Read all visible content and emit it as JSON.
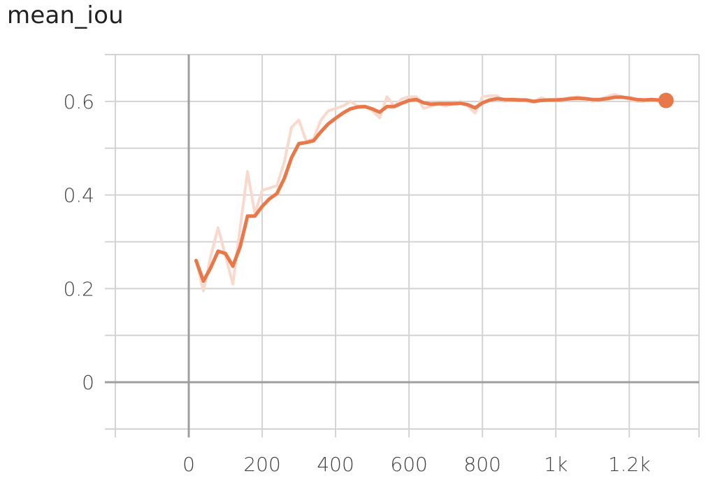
{
  "chart_data": {
    "type": "line",
    "title": "mean_iou",
    "xlabel": "",
    "ylabel": "",
    "xlim": [
      -200,
      1390
    ],
    "ylim": [
      -0.1,
      0.7
    ],
    "x_ticks": [
      0,
      200,
      400,
      600,
      800,
      1000,
      1200
    ],
    "x_tick_labels": [
      "0",
      "200",
      "400",
      "600",
      "800",
      "1k",
      "1.2k"
    ],
    "x_minor_ticks": [
      -200,
      0,
      200,
      400,
      600,
      800,
      1000,
      1200,
      1390
    ],
    "y_ticks": [
      0,
      0.2,
      0.4,
      0.6
    ],
    "y_tick_labels": [
      "0",
      "0.2",
      "0.4",
      "0.6"
    ],
    "y_minor_ticks": [
      -0.1,
      0.1,
      0.3,
      0.5,
      0.7
    ],
    "grid": true,
    "colors": {
      "series": "#e8784a",
      "series_raw": "#f9d9cc",
      "grid": "#d3d3d3",
      "zero_axis": "#9e9e9e",
      "text": "#424242"
    },
    "series": [
      {
        "name": "",
        "role": "raw",
        "x": [
          20,
          40,
          60,
          80,
          100,
          120,
          140,
          160,
          180,
          200,
          220,
          240,
          260,
          280,
          300,
          320,
          340,
          360,
          380,
          400,
          420,
          440,
          460,
          480,
          500,
          520,
          540,
          560,
          580,
          600,
          620,
          640,
          660,
          680,
          700,
          720,
          740,
          760,
          780,
          800,
          820,
          840,
          860,
          880,
          900,
          920,
          940,
          960,
          980,
          1000,
          1020,
          1040,
          1060,
          1080,
          1100,
          1120,
          1140,
          1160,
          1180,
          1200,
          1220,
          1240,
          1260,
          1280,
          1300
        ],
        "y": [
          0.26,
          0.195,
          0.27,
          0.33,
          0.27,
          0.21,
          0.33,
          0.45,
          0.36,
          0.41,
          0.415,
          0.42,
          0.47,
          0.545,
          0.56,
          0.515,
          0.52,
          0.56,
          0.58,
          0.585,
          0.59,
          0.6,
          0.59,
          0.59,
          0.58,
          0.565,
          0.61,
          0.59,
          0.605,
          0.61,
          0.61,
          0.585,
          0.59,
          0.595,
          0.59,
          0.595,
          0.6,
          0.59,
          0.575,
          0.61,
          0.612,
          0.612,
          0.6,
          0.605,
          0.605,
          0.6,
          0.598,
          0.608,
          0.602,
          0.605,
          0.605,
          0.608,
          0.61,
          0.605,
          0.6,
          0.605,
          0.61,
          0.615,
          0.61,
          0.605,
          0.6,
          0.6,
          0.605,
          0.6,
          0.6
        ]
      },
      {
        "name": "",
        "role": "smoothed",
        "x": [
          20,
          40,
          60,
          80,
          100,
          120,
          140,
          160,
          180,
          200,
          220,
          240,
          260,
          280,
          300,
          320,
          340,
          360,
          380,
          400,
          420,
          440,
          460,
          480,
          500,
          520,
          540,
          560,
          580,
          600,
          620,
          640,
          660,
          680,
          700,
          720,
          740,
          760,
          780,
          800,
          820,
          840,
          860,
          880,
          900,
          920,
          940,
          960,
          980,
          1000,
          1020,
          1040,
          1060,
          1080,
          1100,
          1120,
          1140,
          1160,
          1180,
          1200,
          1220,
          1240,
          1260,
          1280,
          1300
        ],
        "y": [
          0.26,
          0.216,
          0.245,
          0.28,
          0.275,
          0.248,
          0.29,
          0.355,
          0.355,
          0.376,
          0.392,
          0.403,
          0.435,
          0.48,
          0.51,
          0.512,
          0.516,
          0.535,
          0.552,
          0.564,
          0.575,
          0.584,
          0.588,
          0.589,
          0.584,
          0.577,
          0.589,
          0.589,
          0.596,
          0.602,
          0.604,
          0.597,
          0.594,
          0.595,
          0.595,
          0.595,
          0.596,
          0.593,
          0.586,
          0.597,
          0.603,
          0.606,
          0.604,
          0.604,
          0.603,
          0.603,
          0.6,
          0.602,
          0.603,
          0.603,
          0.604,
          0.606,
          0.607,
          0.606,
          0.604,
          0.604,
          0.606,
          0.609,
          0.609,
          0.607,
          0.604,
          0.603,
          0.604,
          0.603,
          0.602
        ]
      }
    ]
  }
}
